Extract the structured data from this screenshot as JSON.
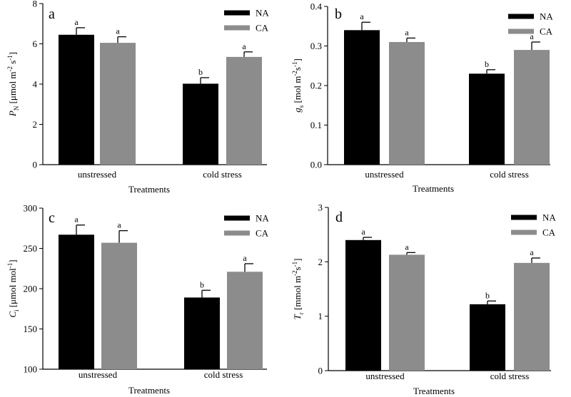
{
  "colors": {
    "NA": "#000000",
    "CA": "#8c8c8c"
  },
  "chart_data": [
    {
      "type": "bar",
      "panel": "a",
      "categories": [
        "unstressed",
        "cold stress"
      ],
      "series": [
        {
          "name": "NA",
          "values": [
            6.45,
            4.02
          ],
          "errors": [
            0.35,
            0.3
          ],
          "letters": [
            "a",
            "b"
          ]
        },
        {
          "name": "CA",
          "values": [
            6.05,
            5.35
          ],
          "errors": [
            0.3,
            0.25
          ],
          "letters": [
            "a",
            "a"
          ]
        }
      ],
      "ylim": [
        0,
        8
      ],
      "yticks": [
        "0",
        "2",
        "4",
        "6",
        "8"
      ],
      "ylabel": {
        "main": "P",
        "sub": "N",
        "rest": " [μmol m",
        "sup1": "-2",
        "mid": " s",
        "sup2": "-1",
        "end": "]"
      },
      "xlabel": "Treatments",
      "legend": [
        "NA",
        "CA"
      ]
    },
    {
      "type": "bar",
      "panel": "b",
      "categories": [
        "unstressed",
        "cold stress"
      ],
      "series": [
        {
          "name": "NA",
          "values": [
            0.34,
            0.23
          ],
          "errors": [
            0.02,
            0.01
          ],
          "letters": [
            "a",
            "b"
          ]
        },
        {
          "name": "CA",
          "values": [
            0.31,
            0.29
          ],
          "errors": [
            0.01,
            0.02
          ],
          "letters": [
            "a",
            "a"
          ]
        }
      ],
      "ylim": [
        0,
        0.4
      ],
      "yticks": [
        "0.0",
        "0.1",
        "0.2",
        "0.3",
        "0.4"
      ],
      "ylabel": {
        "main": "g",
        "sub": "s",
        "rest": " [mol  m",
        "sup1": "-2",
        "mid": "s",
        "sup2": "-1",
        "end": "]"
      },
      "xlabel": "Treatments",
      "legend": [
        "NA",
        "CA"
      ]
    },
    {
      "type": "bar",
      "panel": "c",
      "categories": [
        "unstressed",
        "cold stress"
      ],
      "series": [
        {
          "name": "NA",
          "values": [
            267,
            189
          ],
          "errors": [
            12,
            9
          ],
          "letters": [
            "a",
            "b"
          ]
        },
        {
          "name": "CA",
          "values": [
            257,
            221
          ],
          "errors": [
            15,
            10
          ],
          "letters": [
            "a",
            "a"
          ]
        }
      ],
      "ylim": [
        100,
        300
      ],
      "yticks": [
        "100",
        "150",
        "200",
        "250",
        "300"
      ],
      "ylabel": {
        "main": "C",
        "sub": "i",
        "rest": " [μmol mol",
        "sup1": "-1",
        "mid": "",
        "sup2": "",
        "end": "]"
      },
      "xlabel": "Treatments",
      "legend": [
        "NA",
        "CA"
      ]
    },
    {
      "type": "bar",
      "panel": "d",
      "categories": [
        "unstressed",
        "cold stress"
      ],
      "series": [
        {
          "name": "NA",
          "values": [
            2.4,
            1.22
          ],
          "errors": [
            0.05,
            0.06
          ],
          "letters": [
            "a",
            "b"
          ]
        },
        {
          "name": "CA",
          "values": [
            2.13,
            1.98
          ],
          "errors": [
            0.04,
            0.09
          ],
          "letters": [
            "a",
            "a"
          ]
        }
      ],
      "ylim": [
        0,
        3
      ],
      "yticks": [
        "0",
        "1",
        "2",
        "3"
      ],
      "ylabel": {
        "main": "T",
        "sub": "r",
        "rest": "  [mmol m",
        "sup1": "-2",
        "mid": "s",
        "sup2": "-1",
        "end": "]"
      },
      "xlabel": "Treatments",
      "legend": [
        "NA",
        "CA"
      ]
    }
  ]
}
